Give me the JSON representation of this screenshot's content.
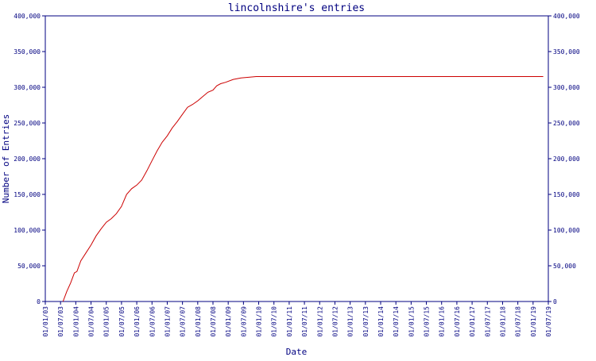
{
  "chart_data": {
    "type": "line",
    "title": "lincolnshire's entries",
    "xlabel": "Date",
    "ylabel": "Number of Entries",
    "ylim": [
      0,
      400000
    ],
    "y_ticks": [
      0,
      50000,
      100000,
      150000,
      200000,
      250000,
      300000,
      350000,
      400000
    ],
    "y_tick_labels": [
      "0",
      "50,000",
      "100,000",
      "150,000",
      "200,000",
      "250,000",
      "300,000",
      "350,000",
      "400,000"
    ],
    "x_range": [
      "2003-01-01",
      "2019-07-01"
    ],
    "x_tick_labels": [
      "01/01/03",
      "01/07/03",
      "01/01/04",
      "01/07/04",
      "01/01/05",
      "01/07/05",
      "01/01/06",
      "01/07/06",
      "01/01/07",
      "01/07/07",
      "01/01/08",
      "01/07/08",
      "01/01/09",
      "01/07/09",
      "01/01/10",
      "01/07/10",
      "01/01/11",
      "01/07/11",
      "01/01/12",
      "01/07/12",
      "01/01/13",
      "01/07/13",
      "01/01/14",
      "01/07/14",
      "01/01/15",
      "01/07/15",
      "01/01/16",
      "01/07/16",
      "01/01/17",
      "01/07/17",
      "01/01/18",
      "01/07/18",
      "01/01/19",
      "01/07/19"
    ],
    "grid": false,
    "colors": {
      "axis": "#000080",
      "line": "#cc0000",
      "background": "#ffffff"
    },
    "series": [
      {
        "points": [
          [
            "2003-08-01",
            0
          ],
          [
            "2003-09-15",
            14000
          ],
          [
            "2003-11-01",
            26000
          ],
          [
            "2003-12-15",
            40000
          ],
          [
            "2004-01-15",
            42000
          ],
          [
            "2004-03-01",
            57000
          ],
          [
            "2004-05-01",
            68000
          ],
          [
            "2004-07-01",
            79000
          ],
          [
            "2004-09-01",
            92000
          ],
          [
            "2004-11-01",
            102000
          ],
          [
            "2005-01-01",
            111000
          ],
          [
            "2005-03-01",
            116000
          ],
          [
            "2005-05-01",
            123000
          ],
          [
            "2005-07-01",
            133000
          ],
          [
            "2005-09-01",
            150000
          ],
          [
            "2005-11-01",
            158000
          ],
          [
            "2006-01-01",
            163000
          ],
          [
            "2006-03-01",
            170000
          ],
          [
            "2006-05-01",
            183000
          ],
          [
            "2006-07-01",
            197000
          ],
          [
            "2006-09-01",
            211000
          ],
          [
            "2006-11-01",
            223000
          ],
          [
            "2007-01-01",
            232000
          ],
          [
            "2007-03-01",
            243000
          ],
          [
            "2007-05-01",
            252000
          ],
          [
            "2007-07-01",
            262000
          ],
          [
            "2007-09-01",
            272000
          ],
          [
            "2007-11-01",
            276000
          ],
          [
            "2008-01-01",
            281000
          ],
          [
            "2008-03-01",
            287000
          ],
          [
            "2008-05-01",
            293000
          ],
          [
            "2008-07-01",
            296000
          ],
          [
            "2008-08-15",
            302000
          ],
          [
            "2008-10-01",
            305000
          ],
          [
            "2008-12-01",
            307000
          ],
          [
            "2009-03-01",
            311000
          ],
          [
            "2009-06-01",
            313000
          ],
          [
            "2009-09-01",
            314000
          ],
          [
            "2009-12-01",
            315000
          ],
          [
            "2010-06-01",
            315000
          ],
          [
            "2011-06-01",
            315000
          ],
          [
            "2013-01-01",
            315000
          ],
          [
            "2015-01-01",
            315000
          ],
          [
            "2017-01-01",
            315000
          ],
          [
            "2019-01-01",
            315000
          ],
          [
            "2019-05-01",
            315000
          ]
        ]
      }
    ]
  }
}
